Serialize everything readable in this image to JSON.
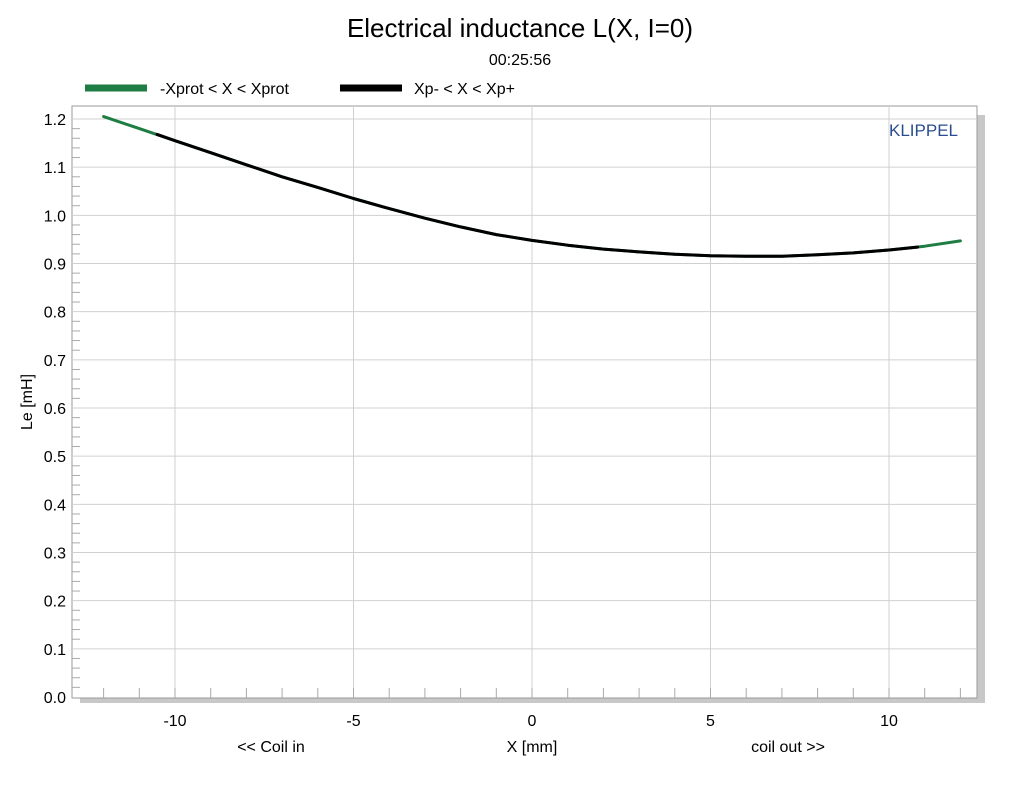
{
  "chart_data": {
    "type": "line",
    "title": "Electrical inductance L(X, I=0)",
    "subtitle": "00:25:56",
    "watermark": "KLIPPEL",
    "xlabel": "X [mm]",
    "xlabel_left": "<< Coil in",
    "xlabel_right": "coil out >>",
    "ylabel": "Le [mH]",
    "xlim": [
      -12.3,
      12.6
    ],
    "ylim": [
      0,
      1.24
    ],
    "xticks": [
      -10,
      -5,
      0,
      5,
      10
    ],
    "yticks": [
      0.0,
      0.1,
      0.2,
      0.3,
      0.4,
      0.5,
      0.6,
      0.7,
      0.8,
      0.9,
      1.0,
      1.1,
      1.2
    ],
    "grid": true,
    "legend_position": "top-left",
    "series": [
      {
        "name": "-Xprot < X < Xprot",
        "color": "#1e7d43",
        "x": [
          -12.0,
          -11.0,
          -10.0,
          -9.0,
          -8.0,
          -7.0,
          -6.0,
          -5.0,
          -4.0,
          -3.0,
          -2.0,
          -1.0,
          0.0,
          1.0,
          2.0,
          3.0,
          4.0,
          5.0,
          6.0,
          7.0,
          8.0,
          9.0,
          10.0,
          11.0,
          12.0
        ],
        "y": [
          1.205,
          1.18,
          1.155,
          1.13,
          1.105,
          1.08,
          1.058,
          1.035,
          1.014,
          0.994,
          0.976,
          0.96,
          0.948,
          0.938,
          0.93,
          0.924,
          0.919,
          0.916,
          0.915,
          0.915,
          0.918,
          0.922,
          0.928,
          0.936,
          0.947
        ]
      },
      {
        "name": "Xp- < X < Xp+",
        "color": "#000000",
        "x": [
          -10.5,
          -10.0,
          -9.0,
          -8.0,
          -7.0,
          -6.0,
          -5.0,
          -4.0,
          -3.0,
          -2.0,
          -1.0,
          0.0,
          1.0,
          2.0,
          3.0,
          4.0,
          5.0,
          6.0,
          7.0,
          8.0,
          9.0,
          10.0,
          10.8
        ],
        "y": [
          1.168,
          1.155,
          1.13,
          1.105,
          1.08,
          1.058,
          1.035,
          1.014,
          0.994,
          0.976,
          0.96,
          0.948,
          0.938,
          0.93,
          0.924,
          0.919,
          0.916,
          0.915,
          0.915,
          0.918,
          0.922,
          0.928,
          0.934
        ]
      }
    ]
  }
}
